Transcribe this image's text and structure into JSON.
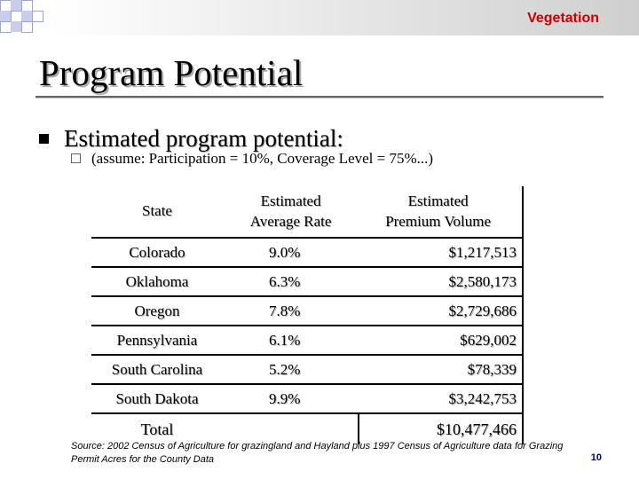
{
  "header": {
    "section_tag": "Vegetation"
  },
  "title": "Program Potential",
  "bullets": {
    "level1": "Estimated program potential:",
    "level2": "(assume: Participation = 10%, Coverage Level = 75%...)"
  },
  "table": {
    "headers": {
      "state": "State",
      "rate_line1": "Estimated",
      "rate_line2": "Average Rate",
      "premium_line1": "Estimated",
      "premium_line2": "Premium Volume"
    },
    "rows": [
      {
        "state": "Colorado",
        "rate": "9.0%",
        "premium": "$1,217,513"
      },
      {
        "state": "Oklahoma",
        "rate": "6.3%",
        "premium": "$2,580,173"
      },
      {
        "state": "Oregon",
        "rate": "7.8%",
        "premium": "$2,729,686"
      },
      {
        "state": "Pennsylvania",
        "rate": "6.1%",
        "premium": "$629,002"
      },
      {
        "state": "South Carolina",
        "rate": "5.2%",
        "premium": "$78,339"
      },
      {
        "state": "South Dakota",
        "rate": "9.9%",
        "premium": "$3,242,753"
      }
    ],
    "total": {
      "label": "Total",
      "premium": "$10,477,466"
    }
  },
  "source": "Source: 2002 Census of Agriculture for grazingland and Hayland plus 1997 Census of Agriculture data for Grazing Permit Acres for the County Data",
  "page_number": "10",
  "colors": {
    "section_tag": "#cc0000",
    "page_number": "#00008b",
    "checker": "#9aa4d6"
  }
}
